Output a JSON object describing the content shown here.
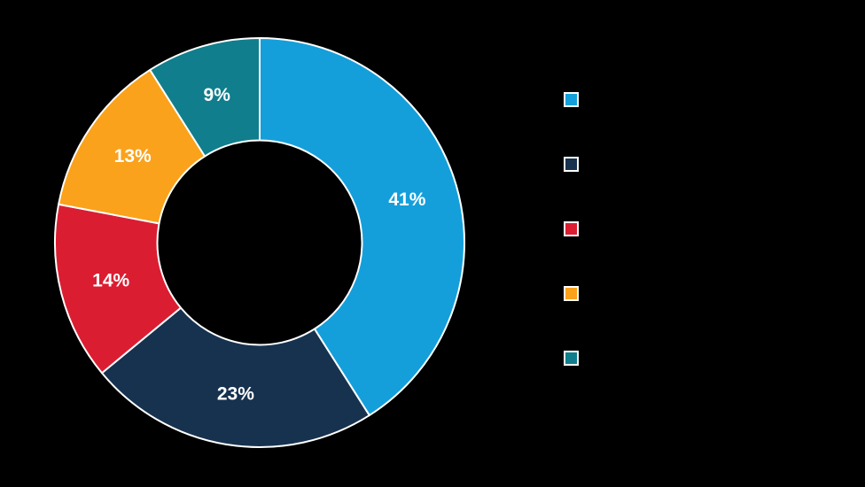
{
  "background_color": "#000000",
  "chart_data": {
    "type": "pie",
    "subtype": "donut",
    "title": "",
    "start_angle_deg": 0,
    "direction": "clockwise",
    "inner_radius_ratio": 0.5,
    "slice_border_color": "#FFFFFF",
    "data_label_color": "#FFFFFF",
    "legend_position": "right",
    "slices": [
      {
        "value": 41,
        "label": "41%",
        "color": "#149FDB"
      },
      {
        "value": 23,
        "label": "23%",
        "color": "#16324F"
      },
      {
        "value": 14,
        "label": "14%",
        "color": "#DB1D32"
      },
      {
        "value": 13,
        "label": "13%",
        "color": "#FAA21B"
      },
      {
        "value": 9,
        "label": "9%",
        "color": "#107E8C"
      }
    ],
    "legend": [
      {
        "swatch_color": "#149FDB",
        "label": ""
      },
      {
        "swatch_color": "#16324F",
        "label": ""
      },
      {
        "swatch_color": "#DB1D32",
        "label": ""
      },
      {
        "swatch_color": "#FAA21B",
        "label": ""
      },
      {
        "swatch_color": "#107E8C",
        "label": ""
      }
    ]
  }
}
